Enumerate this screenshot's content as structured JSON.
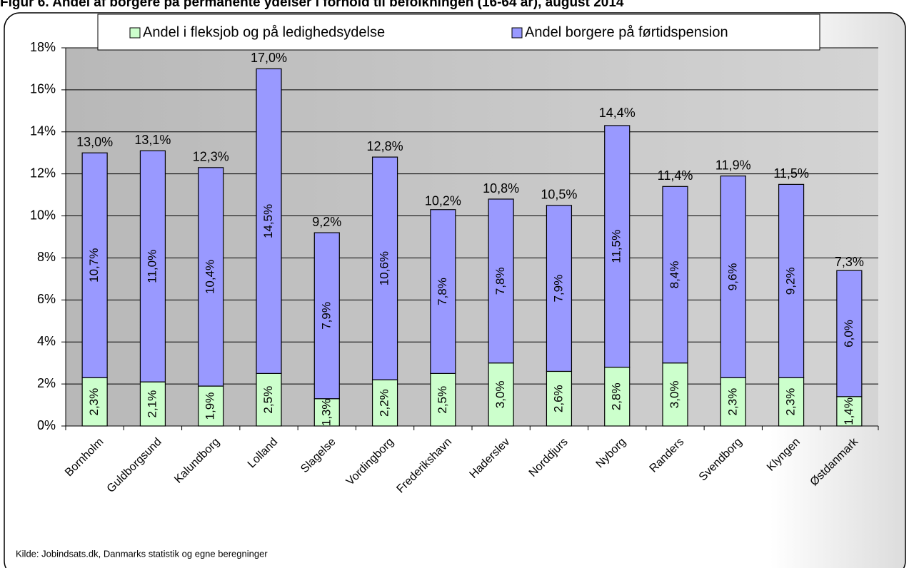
{
  "chart_data": {
    "type": "stacked_bar",
    "title": "Figur 6. Andel af borgere på permanente ydelser i forhold til befolkningen (16-64 år), august 2014",
    "source": "Kilde: Jobindsats.dk, Danmarks statistik og egne beregninger",
    "categories": [
      "Bornholm",
      "Guldborgsund",
      "Kalundborg",
      "Lolland",
      "Slagelse",
      "Vordingborg",
      "Frederikshavn",
      "Haderslev",
      "Norddjurs",
      "Nyborg",
      "Randers",
      "Svendborg",
      "Klyngen",
      "Østdanmark"
    ],
    "series": [
      {
        "name": "Andel i fleksjob og på ledighedsydelse",
        "color": "#ccffcc",
        "values": [
          2.3,
          2.1,
          1.9,
          2.5,
          1.3,
          2.2,
          2.5,
          3.0,
          2.6,
          2.8,
          3.0,
          2.3,
          2.3,
          1.4
        ],
        "value_labels": [
          "2,3%",
          "2,1%",
          "1,9%",
          "2,5%",
          "1,3%",
          "2,2%",
          "2,5%",
          "3,0%",
          "2,6%",
          "2,8%",
          "3,0%",
          "2,3%",
          "2,3%",
          "1,4%"
        ]
      },
      {
        "name": "Andel borgere på førtidspension",
        "color": "#9999ff",
        "values": [
          10.7,
          11.0,
          10.4,
          14.5,
          7.9,
          10.6,
          7.8,
          7.8,
          7.9,
          11.5,
          8.4,
          9.6,
          9.2,
          6.0
        ],
        "value_labels": [
          "10,7%",
          "11,0%",
          "10,4%",
          "14,5%",
          "7,9%",
          "10,6%",
          "7,8%",
          "7,8%",
          "7,9%",
          "11,5%",
          "8,4%",
          "9,6%",
          "9,2%",
          "6,0%"
        ]
      }
    ],
    "totals": [
      13.0,
      13.1,
      12.3,
      17.0,
      9.2,
      12.8,
      10.2,
      10.8,
      10.5,
      14.4,
      11.4,
      11.9,
      11.5,
      7.3
    ],
    "total_labels": [
      "13,0%",
      "13,1%",
      "12,3%",
      "17,0%",
      "9,2%",
      "12,8%",
      "10,2%",
      "10,8%",
      "10,5%",
      "14,4%",
      "11,4%",
      "11,9%",
      "11,5%",
      "7,3%"
    ],
    "ylim": [
      0,
      18
    ],
    "yticks": [
      {
        "value": 0,
        "label": "0%"
      },
      {
        "value": 2,
        "label": "2%"
      },
      {
        "value": 4,
        "label": "4%"
      },
      {
        "value": 6,
        "label": "6%"
      },
      {
        "value": 8,
        "label": "8%"
      },
      {
        "value": 10,
        "label": "10%"
      },
      {
        "value": 12,
        "label": "12%"
      },
      {
        "value": 14,
        "label": "14%"
      },
      {
        "value": 16,
        "label": "16%"
      },
      {
        "value": 18,
        "label": "18%"
      }
    ],
    "grid": true,
    "legend": "top"
  }
}
